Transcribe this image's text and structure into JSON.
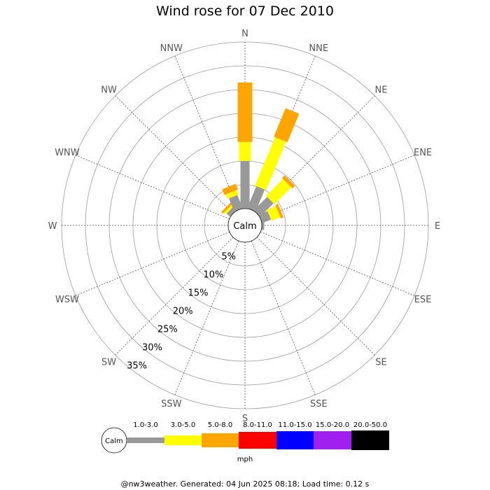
{
  "chart_data": {
    "type": "wind-rose",
    "title": "Wind rose for 07 Dec 2010",
    "calm_label": "Calm",
    "directions": [
      "N",
      "NNE",
      "NE",
      "ENE",
      "E",
      "ESE",
      "SE",
      "SSE",
      "S",
      "SSW",
      "SW",
      "WSW",
      "W",
      "WNW",
      "NW",
      "NNW"
    ],
    "rings": [
      "5%",
      "10%",
      "15%",
      "20%",
      "25%",
      "30%",
      "35%"
    ],
    "ring_max_percent": 35,
    "unit": "mph",
    "speed_bins": [
      {
        "label": "1.0-3.0",
        "color": "#999999"
      },
      {
        "label": "3.0-5.0",
        "color": "#ffff00"
      },
      {
        "label": "5.0-8.0",
        "color": "#ffa500"
      },
      {
        "label": "8.0-11.0",
        "color": "#ff0000"
      },
      {
        "label": "11.0-15.0",
        "color": "#0000ff"
      },
      {
        "label": "15.0-20.0",
        "color": "#a020f0"
      },
      {
        "label": "20.0-50.0",
        "color": "#000000"
      }
    ],
    "series": [
      {
        "direction": "N",
        "values": [
          10.0,
          4.0,
          12.5,
          0,
          0,
          0,
          0
        ]
      },
      {
        "direction": "NNE",
        "values": [
          5.0,
          11.0,
          6.5,
          0,
          0,
          0,
          0
        ]
      },
      {
        "direction": "NE",
        "values": [
          4.0,
          5.0,
          0.8,
          0,
          0,
          0,
          0
        ]
      },
      {
        "direction": "ENE",
        "values": [
          2.0,
          2.0,
          0.6,
          0,
          0,
          0,
          0
        ]
      },
      {
        "direction": "E",
        "values": [
          0.5,
          0,
          0,
          0,
          0,
          0,
          0
        ]
      },
      {
        "direction": "NW",
        "values": [
          1.0,
          0.5,
          0.5,
          0,
          0,
          0,
          0
        ]
      },
      {
        "direction": "NNW",
        "values": [
          3.0,
          1.0,
          1.3,
          0,
          0,
          0,
          0
        ]
      }
    ]
  },
  "footer": "@nw3weather. Generated: 04 Jun 2025 08:18; Load time: 0.12 s"
}
